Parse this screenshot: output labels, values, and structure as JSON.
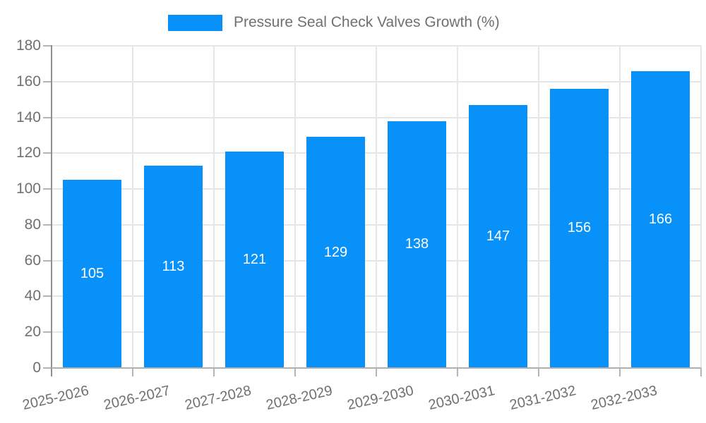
{
  "chart_data": {
    "type": "bar",
    "title": "Pressure Seal Check Valves Growth (%)",
    "legend": {
      "position": "top",
      "entries": [
        {
          "label": "Pressure Seal Check Valves Growth (%)",
          "color": "#0991fa"
        }
      ]
    },
    "categories": [
      "2025-2026",
      "2026-2027",
      "2027-2028",
      "2028-2029",
      "2029-2030",
      "2030-2031",
      "2031-2032",
      "2032-2033"
    ],
    "series": [
      {
        "name": "Pressure Seal Check Valves Growth (%)",
        "values": [
          105,
          113,
          121,
          129,
          138,
          147,
          156,
          166
        ]
      }
    ],
    "bar_labels": [
      "105",
      "113",
      "121",
      "129",
      "138",
      "147",
      "156",
      "166"
    ],
    "xlabel": "",
    "ylabel": "",
    "ylim": [
      0,
      180
    ],
    "yticks": [
      0,
      20,
      40,
      60,
      80,
      100,
      120,
      140,
      160,
      180
    ],
    "grid": true,
    "xtick_rotation_deg": -13,
    "colors": {
      "bar": "#0991fa",
      "bar_label": "#ffffff",
      "grid": "#e6e6e6",
      "y_axis": "#8f8f8f",
      "x_axis": "#b0b0b0",
      "tick": "#b5b5b5",
      "text": "#707070",
      "background": "#ffffff"
    }
  }
}
